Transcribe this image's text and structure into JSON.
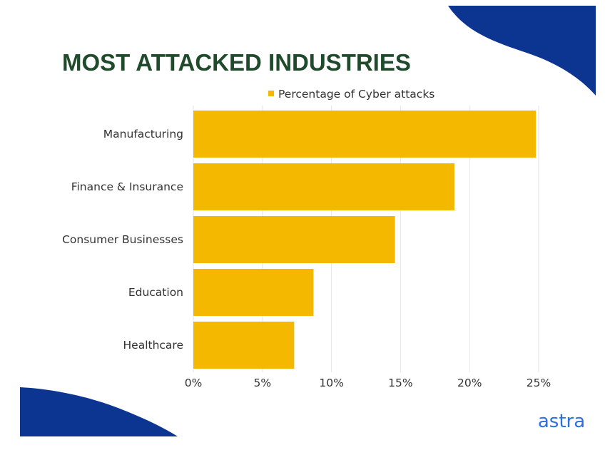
{
  "colors": {
    "bar": "#F5B800",
    "title": "#1F4A2B",
    "wave": "#0B3591",
    "logo": "#2D6FE0",
    "grid": "#E6E6E6",
    "text": "#333333"
  },
  "logo": {
    "text": "astra"
  },
  "chart_data": {
    "type": "bar",
    "orientation": "horizontal",
    "title": "MOST ATTACKED INDUSTRIES",
    "categories": [
      "Manufacturing",
      "Finance & Insurance",
      "Consumer Businesses",
      "Education",
      "Healthcare"
    ],
    "series": [
      {
        "name": "Percentage of Cyber attacks",
        "values": [
          24.8,
          18.9,
          14.6,
          8.7,
          7.3
        ]
      }
    ],
    "xlim": [
      0,
      25
    ],
    "xticks": [
      0,
      5,
      10,
      15,
      20,
      25
    ],
    "xtick_labels": [
      "0%",
      "5%",
      "10%",
      "15%",
      "20%",
      "25%"
    ],
    "xlabel": "",
    "ylabel": "",
    "grid": "vertical",
    "legend": "top-right"
  }
}
